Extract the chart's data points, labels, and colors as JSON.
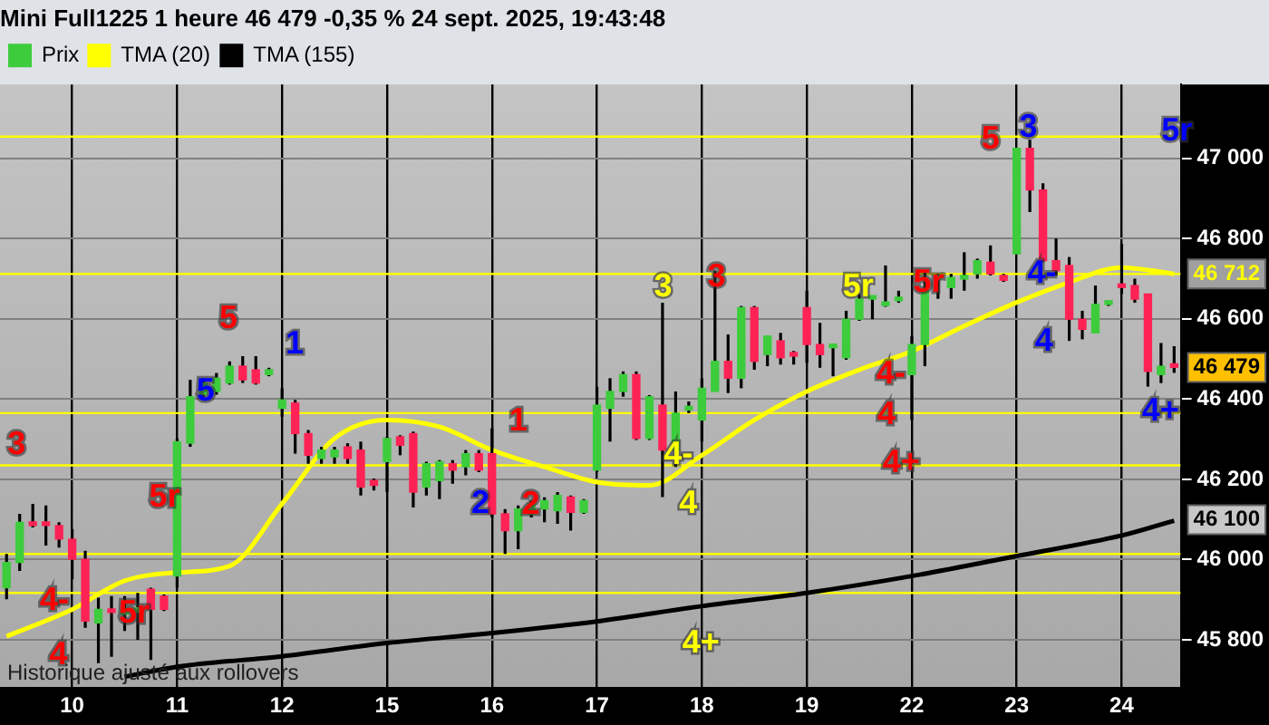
{
  "chart_data": {
    "type": "candlestick",
    "title": "Mini Full1225 1 heure 46 479 -0,35 % 24 sept. 2025, 19:43:48",
    "categories": [
      null,
      null,
      null,
      null,
      null,
      "10",
      null,
      null,
      null,
      null,
      null,
      null,
      null,
      "11",
      null,
      null,
      null,
      null,
      null,
      null,
      null,
      "12",
      null,
      null,
      null,
      null,
      null,
      null,
      null,
      "15",
      null,
      null,
      null,
      null,
      null,
      null,
      null,
      "16",
      null,
      null,
      null,
      null,
      null,
      null,
      null,
      "17",
      null,
      null,
      null,
      null,
      null,
      null,
      null,
      "18",
      null,
      null,
      null,
      null,
      null,
      null,
      null,
      "19",
      null,
      null,
      null,
      null,
      null,
      null,
      null,
      "22",
      null,
      null,
      null,
      null,
      null,
      null,
      null,
      "23",
      null,
      null,
      null,
      null,
      null,
      null,
      null,
      "24",
      null,
      null,
      null,
      null
    ],
    "ylim": [
      45680,
      47184
    ],
    "yticks": [
      {
        "value": 45800,
        "label": "45 800"
      },
      {
        "value": 46000,
        "label": "46 000"
      },
      {
        "value": 46200,
        "label": "46 200"
      },
      {
        "value": 46400,
        "label": "46 400"
      },
      {
        "value": 46600,
        "label": "46 600"
      },
      {
        "value": 46800,
        "label": "46 800"
      },
      {
        "value": 47000,
        "label": "47 000"
      }
    ],
    "grid": true,
    "legend": "top left",
    "series": [
      {
        "name": "Prix",
        "ohlc": [
          [
            45930,
            46014,
            45901,
            45993
          ],
          [
            45993,
            46114,
            45972,
            46093
          ],
          [
            46093,
            46139,
            46080,
            46085
          ],
          [
            46093,
            46135,
            46035,
            46085
          ],
          [
            46085,
            46093,
            46030,
            46051
          ],
          [
            46051,
            46076,
            45951,
            46001
          ],
          [
            46001,
            46022,
            45830,
            45847
          ],
          [
            45842,
            45905,
            45742,
            45876
          ],
          [
            45872,
            45909,
            45758,
            45868
          ],
          [
            45864,
            45909,
            45822,
            45876
          ],
          [
            45868,
            45917,
            45800,
            45880
          ],
          [
            45926,
            45930,
            45750,
            45876
          ],
          [
            45909,
            45913,
            45872,
            45876
          ],
          [
            45959,
            46302,
            45930,
            46294
          ],
          [
            46290,
            46448,
            46281,
            46406
          ],
          [
            46411,
            46452,
            46406,
            46440
          ],
          [
            46419,
            46465,
            46411,
            46452
          ],
          [
            46440,
            46494,
            46436,
            46482
          ],
          [
            46482,
            46507,
            46440,
            46448
          ],
          [
            46473,
            46507,
            46436,
            46440
          ],
          [
            46461,
            46478,
            46457,
            46473
          ],
          [
            46377,
            46427,
            46356,
            46398
          ],
          [
            46390,
            46398,
            46264,
            46314
          ],
          [
            46314,
            46323,
            46239,
            46260
          ],
          [
            46252,
            46281,
            46239,
            46273
          ],
          [
            46256,
            46281,
            46239,
            46273
          ],
          [
            46281,
            46290,
            46239,
            46252
          ],
          [
            46273,
            46294,
            46160,
            46181
          ],
          [
            46197,
            46202,
            46172,
            46185
          ],
          [
            46244,
            46306,
            46168,
            46302
          ],
          [
            46306,
            46310,
            46260,
            46285
          ],
          [
            46314,
            46319,
            46130,
            46168
          ],
          [
            46181,
            46244,
            46160,
            46239
          ],
          [
            46197,
            46248,
            46151,
            46244
          ],
          [
            46239,
            46248,
            46189,
            46223
          ],
          [
            46231,
            46273,
            46210,
            46264
          ],
          [
            46264,
            46273,
            46218,
            46223
          ],
          [
            46264,
            46327,
            46105,
            46114
          ],
          [
            46114,
            46126,
            46014,
            46072
          ],
          [
            46072,
            46135,
            46026,
            46126
          ],
          [
            46114,
            46147,
            46105,
            46139
          ],
          [
            46126,
            46155,
            46093,
            46147
          ],
          [
            46122,
            46168,
            46089,
            46160
          ],
          [
            46156,
            46160,
            46072,
            46118
          ],
          [
            46118,
            46151,
            46114,
            46147
          ],
          [
            46223,
            46431,
            46218,
            46385
          ],
          [
            46377,
            46452,
            46294,
            46419
          ],
          [
            46419,
            46469,
            46406,
            46461
          ],
          [
            46461,
            46469,
            46298,
            46302
          ],
          [
            46302,
            46410,
            46298,
            46406
          ],
          [
            46385,
            46640,
            46156,
            46273
          ],
          [
            46273,
            46419,
            46231,
            46365
          ],
          [
            46373,
            46394,
            46365,
            46381
          ],
          [
            46348,
            46452,
            46294,
            46427
          ],
          [
            46419,
            46720,
            46419,
            46494
          ],
          [
            46494,
            46561,
            46415,
            46452
          ],
          [
            46452,
            46632,
            46427,
            46628
          ],
          [
            46628,
            46632,
            46473,
            46494
          ],
          [
            46511,
            46557,
            46482,
            46557
          ],
          [
            46545,
            46565,
            46486,
            46503
          ],
          [
            46515,
            46520,
            46486,
            46507
          ],
          [
            46628,
            46670,
            46490,
            46536
          ],
          [
            46536,
            46590,
            46478,
            46511
          ],
          [
            46528,
            46536,
            46457,
            46536
          ],
          [
            46503,
            46620,
            46498,
            46599
          ],
          [
            46599,
            46662,
            46595,
            46649
          ],
          [
            46649,
            46657,
            46599,
            46657
          ],
          [
            46633,
            46733,
            46630,
            46641
          ],
          [
            46645,
            46670,
            46640,
            46653
          ],
          [
            46461,
            46557,
            46348,
            46536
          ],
          [
            46536,
            46720,
            46482,
            46670
          ],
          [
            46699,
            46712,
            46650,
            46707
          ],
          [
            46678,
            46712,
            46650,
            46703
          ],
          [
            46699,
            46766,
            46670,
            46707
          ],
          [
            46712,
            46750,
            46700,
            46745
          ],
          [
            46741,
            46783,
            46708,
            46712
          ],
          [
            46708,
            46712,
            46692,
            46696
          ],
          [
            46762,
            47025,
            46760,
            47025
          ],
          [
            47025,
            47046,
            46866,
            46921
          ],
          [
            46921,
            46938,
            46741,
            46745
          ],
          [
            46745,
            46800,
            46708,
            46720
          ],
          [
            46733,
            46754,
            46545,
            46599
          ],
          [
            46599,
            46620,
            46549,
            46574
          ],
          [
            46565,
            46683,
            46565,
            46636
          ],
          [
            46636,
            46645,
            46632,
            46644
          ],
          [
            46687,
            46787,
            46662,
            46678
          ],
          [
            46683,
            46700,
            46640,
            46649
          ],
          [
            46662,
            46662,
            46431,
            46469
          ],
          [
            46461,
            46540,
            46440,
            46482
          ],
          [
            46486,
            46532,
            46465,
            46479
          ]
        ],
        "colors": [
          "#3ccc3c",
          "#3ccc3c",
          "#ff2255",
          "#ff2255",
          "#ff2255",
          "#ff2255",
          "#ff2255",
          "#3ccc3c",
          "#ff2255",
          "#3ccc3c",
          "#3ccc3c",
          "#ff2255",
          "#ff2255",
          "#3ccc3c",
          "#3ccc3c",
          "#3ccc3c",
          "#3ccc3c",
          "#3ccc3c",
          "#ff2255",
          "#ff2255",
          "#3ccc3c",
          "#3ccc3c",
          "#ff2255",
          "#ff2255",
          "#3ccc3c",
          "#3ccc3c",
          "#ff2255",
          "#ff2255",
          "#ff2255",
          "#3ccc3c",
          "#ff2255",
          "#ff2255",
          "#3ccc3c",
          "#3ccc3c",
          "#ff2255",
          "#3ccc3c",
          "#ff2255",
          "#ff2255",
          "#ff2255",
          "#3ccc3c",
          "#3ccc3c",
          "#3ccc3c",
          "#3ccc3c",
          "#ff2255",
          "#3ccc3c",
          "#3ccc3c",
          "#3ccc3c",
          "#3ccc3c",
          "#ff2255",
          "#3ccc3c",
          "#ff2255",
          "#3ccc3c",
          "#3ccc3c",
          "#3ccc3c",
          "#3ccc3c",
          "#ff2255",
          "#3ccc3c",
          "#ff2255",
          "#3ccc3c",
          "#ff2255",
          "#ff2255",
          "#ff2255",
          "#ff2255",
          "#3ccc3c",
          "#3ccc3c",
          "#3ccc3c",
          "#3ccc3c",
          "#3ccc3c",
          "#3ccc3c",
          "#3ccc3c",
          "#3ccc3c",
          "#3ccc3c",
          "#3ccc3c",
          "#3ccc3c",
          "#3ccc3c",
          "#ff2255",
          "#ff2255",
          "#3ccc3c",
          "#ff2255",
          "#ff2255",
          "#ff2255",
          "#ff2255",
          "#ff2255",
          "#3ccc3c",
          "#3ccc3c",
          "#ff2255",
          "#ff2255",
          "#ff2255",
          "#3ccc3c",
          "#ff2255"
        ]
      },
      {
        "type": "line",
        "name": "TMA (20)",
        "color": "#ffff00",
        "values": [
          45809,
          null,
          null,
          null,
          null,
          45876,
          null,
          null,
          null,
          45947,
          null,
          null,
          null,
          45968,
          null,
          null,
          null,
          45984,
          null,
          null,
          null,
          46139,
          null,
          null,
          null,
          46302,
          null,
          null,
          null,
          46348,
          null,
          null,
          null,
          46331,
          null,
          null,
          null,
          46273,
          null,
          null,
          null,
          46231,
          null,
          null,
          null,
          46193,
          null,
          null,
          null,
          46185,
          null,
          null,
          null,
          46260,
          null,
          null,
          null,
          46348,
          null,
          null,
          null,
          46419,
          null,
          null,
          null,
          46473,
          null,
          null,
          null,
          46519,
          null,
          null,
          null,
          46582,
          null,
          null,
          null,
          46641,
          null,
          null,
          null,
          46691,
          null,
          null,
          null,
          46728,
          null,
          null,
          null,
          46712
        ]
      },
      {
        "type": "line",
        "name": "TMA (155)",
        "color": "#000000",
        "values": [
          null,
          null,
          null,
          null,
          null,
          null,
          null,
          null,
          null,
          45708,
          null,
          null,
          null,
          45733,
          null,
          null,
          null,
          null,
          null,
          null,
          null,
          45759,
          null,
          null,
          null,
          null,
          null,
          null,
          null,
          45792,
          null,
          null,
          null,
          null,
          null,
          null,
          null,
          45817,
          null,
          null,
          null,
          null,
          null,
          null,
          null,
          45846,
          null,
          null,
          null,
          null,
          null,
          null,
          null,
          45884,
          null,
          null,
          null,
          null,
          null,
          null,
          null,
          45917,
          null,
          null,
          null,
          null,
          null,
          null,
          null,
          45959,
          null,
          null,
          null,
          null,
          null,
          null,
          null,
          46009,
          null,
          null,
          null,
          null,
          null,
          null,
          null,
          46060,
          null,
          null,
          null,
          46097
        ]
      }
    ],
    "ref_lines": [
      {
        "axis": "y",
        "value": 47054,
        "color": "#ffff00"
      },
      {
        "axis": "y",
        "value": 46712,
        "label": "46 712",
        "color": "#ffff00"
      },
      {
        "axis": "y",
        "value": 46365,
        "color": "#ffff00"
      },
      {
        "axis": "y",
        "value": 46235,
        "color": "#ffff00"
      },
      {
        "axis": "y",
        "value": 46014,
        "color": "#ffff00"
      },
      {
        "axis": "y",
        "value": 45917,
        "color": "#ffff00"
      }
    ],
    "annotations": [
      "3",
      "4-",
      "4",
      "5r",
      "5r",
      "5",
      "5",
      "1",
      "1",
      "2",
      "2",
      "3",
      "3",
      "4-",
      "4",
      "4+",
      "5r",
      "5r",
      "4-",
      "4",
      "4+",
      "5",
      "3",
      "4-",
      "4",
      "4+",
      "5r",
      "46 479",
      "46 100",
      "Historique ajusté aux rollovers"
    ]
  }
}
